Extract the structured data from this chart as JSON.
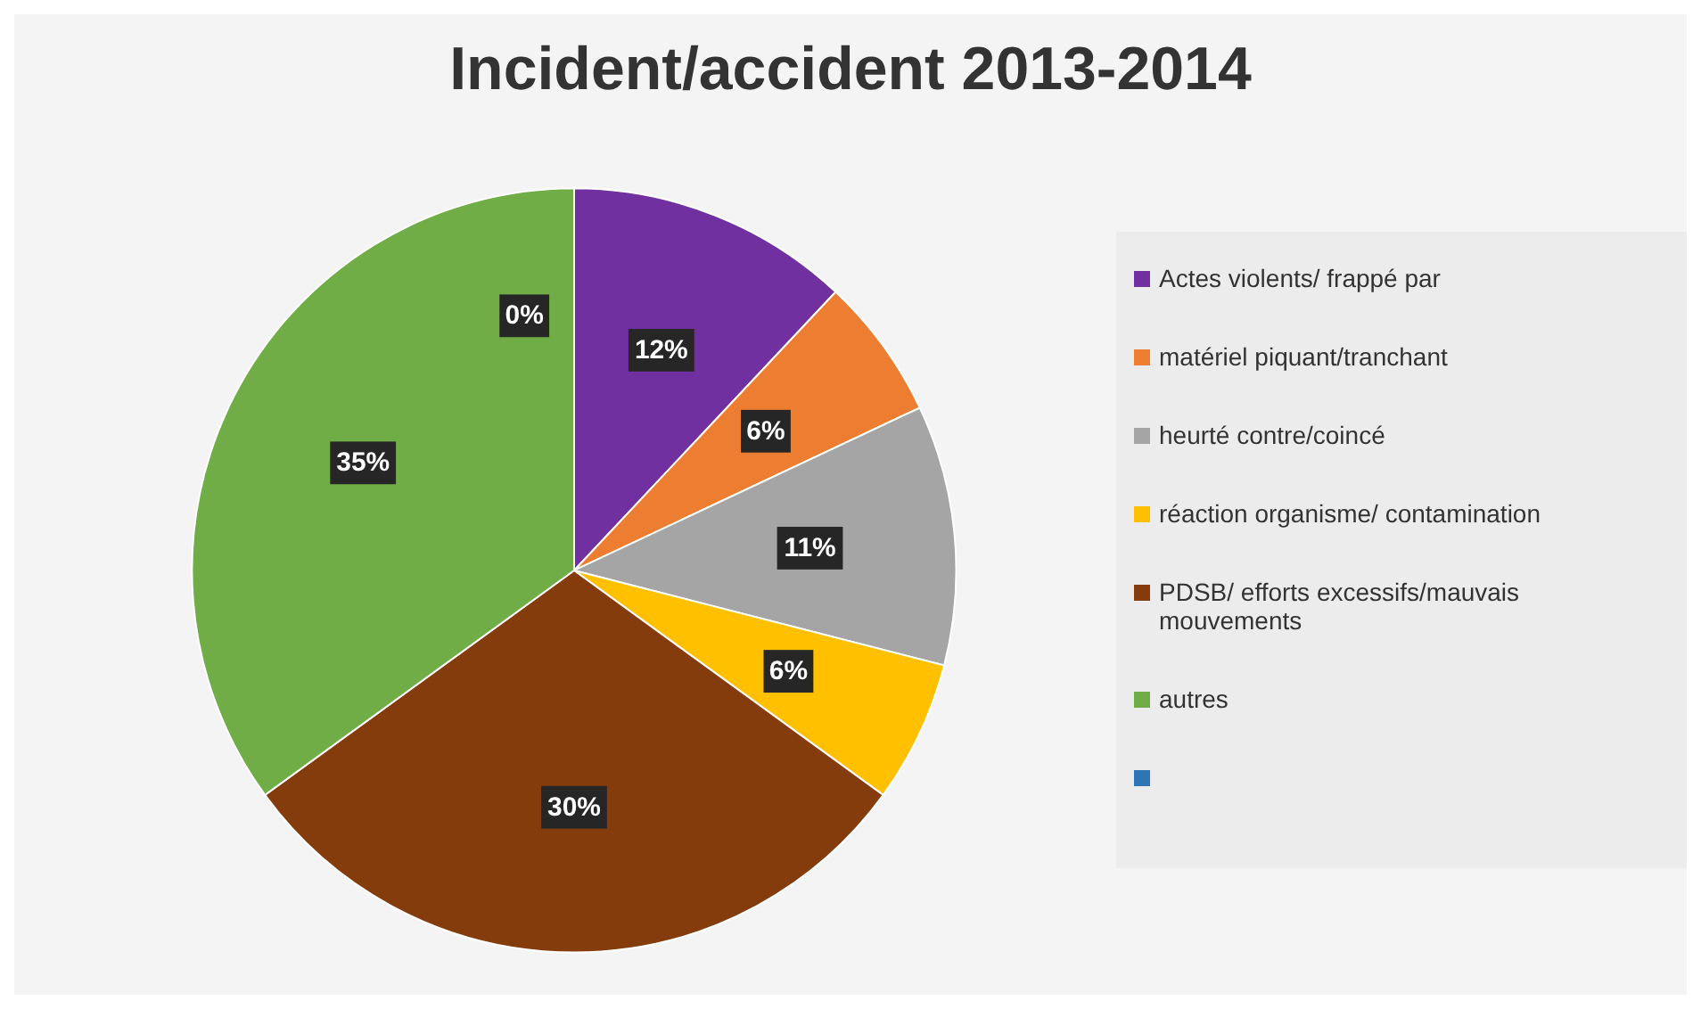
{
  "chart_data": {
    "type": "pie",
    "title": "Incident/accident 2013-2014",
    "categories": [
      "Actes violents/ frappé par",
      "matériel piquant/tranchant",
      "heurté contre/coincé",
      "réaction organisme/ contamination",
      "PDSB/ efforts excessifs/mauvais mouvements",
      "autres",
      null
    ],
    "values": [
      12,
      6,
      11,
      6,
      30,
      35,
      0
    ],
    "colors": [
      "#7030a0",
      "#ed7d31",
      "#a5a5a5",
      "#ffc000",
      "#843c0c",
      "#70ad47",
      "#2e75b6"
    ],
    "value_labels": [
      "12%",
      "6%",
      "11%",
      "6%",
      "30%",
      "35%",
      "0%"
    ],
    "legend": "right"
  }
}
